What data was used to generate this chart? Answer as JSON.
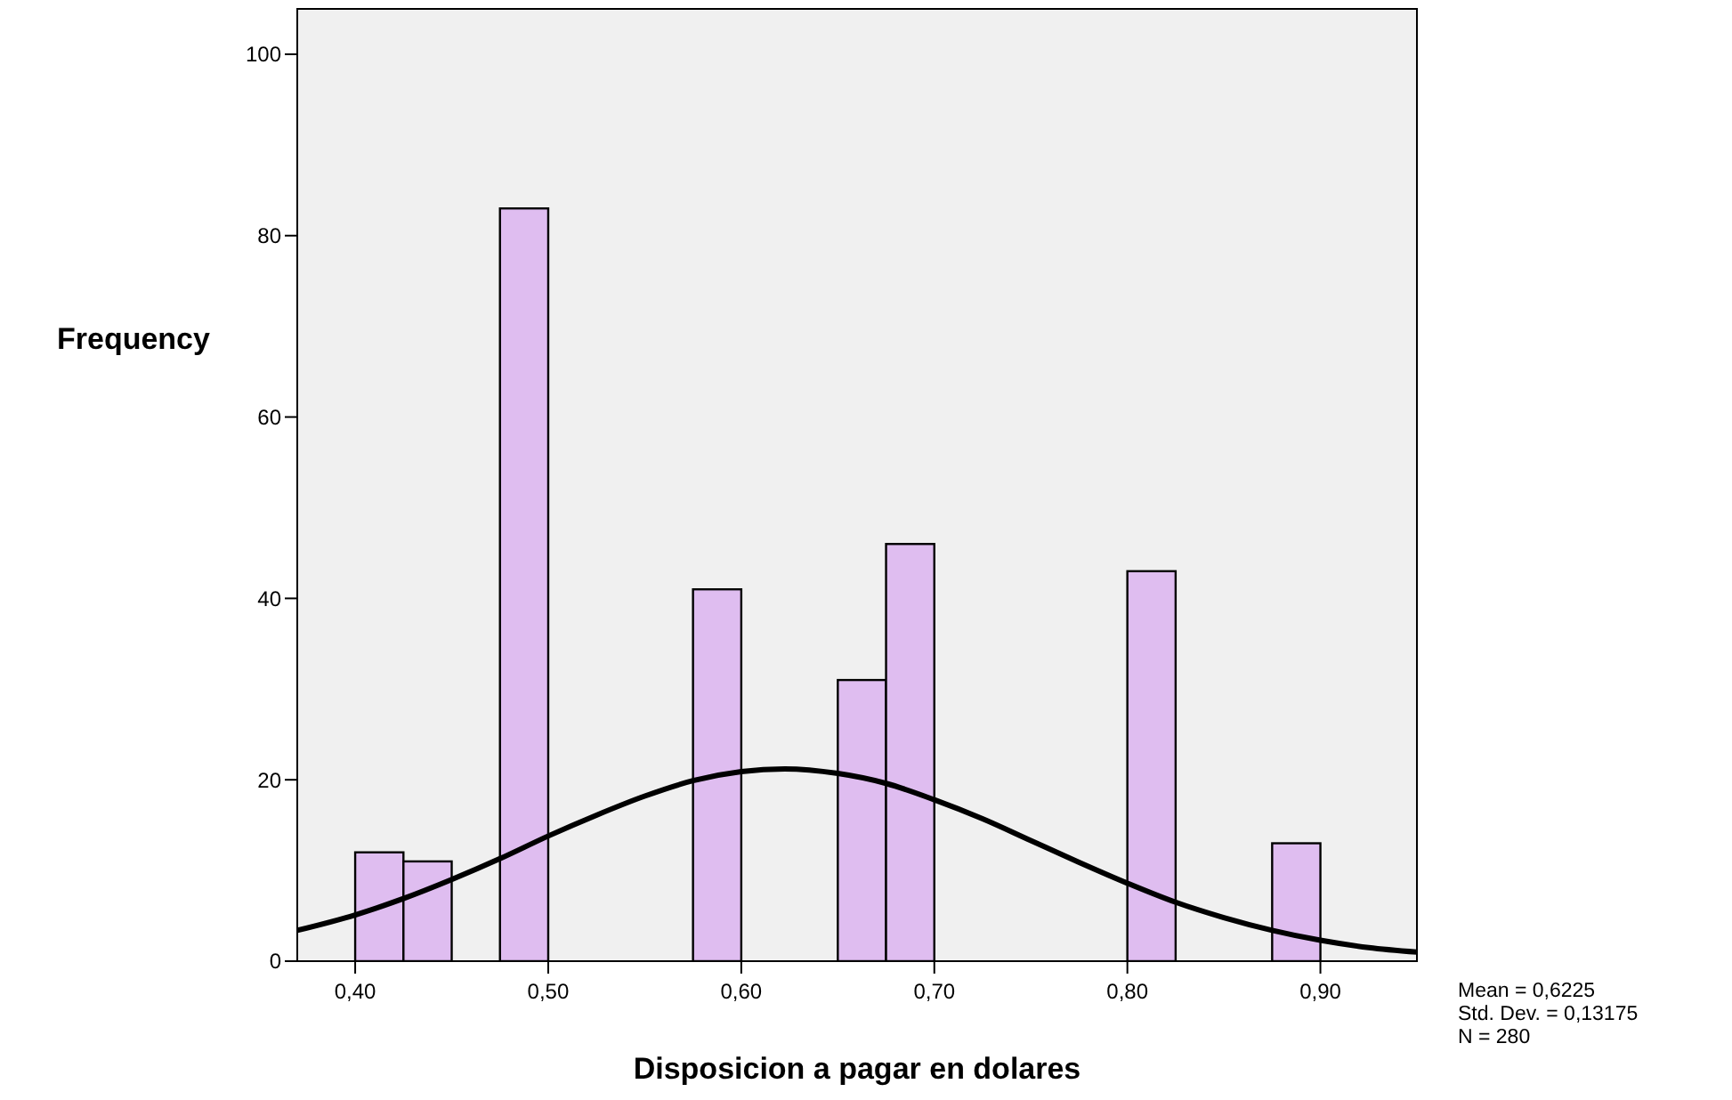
{
  "chart_data": {
    "type": "histogram",
    "xlabel": "Disposicion a pagar en dolares",
    "ylabel": "Frequency",
    "xlim": [
      0.37,
      0.95
    ],
    "ylim": [
      0,
      105
    ],
    "xticks": [
      {
        "value": 0.4,
        "label": "0,40"
      },
      {
        "value": 0.5,
        "label": "0,50"
      },
      {
        "value": 0.6,
        "label": "0,60"
      },
      {
        "value": 0.7,
        "label": "0,70"
      },
      {
        "value": 0.8,
        "label": "0,80"
      },
      {
        "value": 0.9,
        "label": "0,90"
      }
    ],
    "yticks": [
      0,
      20,
      40,
      60,
      80,
      100
    ],
    "grid": false,
    "series": [
      {
        "color": "#dfbdf0",
        "bins": [
          0.4,
          0.425,
          0.45,
          0.475,
          0.5,
          0.525,
          0.55,
          0.575,
          0.6,
          0.625,
          0.65,
          0.675,
          0.7,
          0.725,
          0.75,
          0.775,
          0.8,
          0.825,
          0.85,
          0.875,
          0.9
        ],
        "values": [
          12,
          11,
          0,
          83,
          0,
          0,
          0,
          41,
          0,
          0,
          31,
          46,
          0,
          0,
          0,
          0,
          43,
          0,
          0,
          13
        ]
      },
      {
        "type": "line",
        "color": "#000000",
        "x": [
          0.37,
          0.4,
          0.425,
          0.45,
          0.475,
          0.5,
          0.525,
          0.55,
          0.575,
          0.6,
          0.6225,
          0.65,
          0.675,
          0.7,
          0.725,
          0.75,
          0.775,
          0.8,
          0.825,
          0.85,
          0.875,
          0.9,
          0.925,
          0.95
        ],
        "values": [
          3.4,
          5.1,
          6.9,
          9.0,
          11.3,
          13.8,
          16.1,
          18.2,
          19.9,
          20.9,
          21.2,
          20.7,
          19.6,
          17.8,
          15.7,
          13.3,
          10.9,
          8.6,
          6.5,
          4.8,
          3.4,
          2.3,
          1.5,
          1.0
        ]
      }
    ],
    "annotations": [
      "Mean = 0,6225",
      "Std. Dev. = 0,13175",
      "N = 280"
    ]
  }
}
